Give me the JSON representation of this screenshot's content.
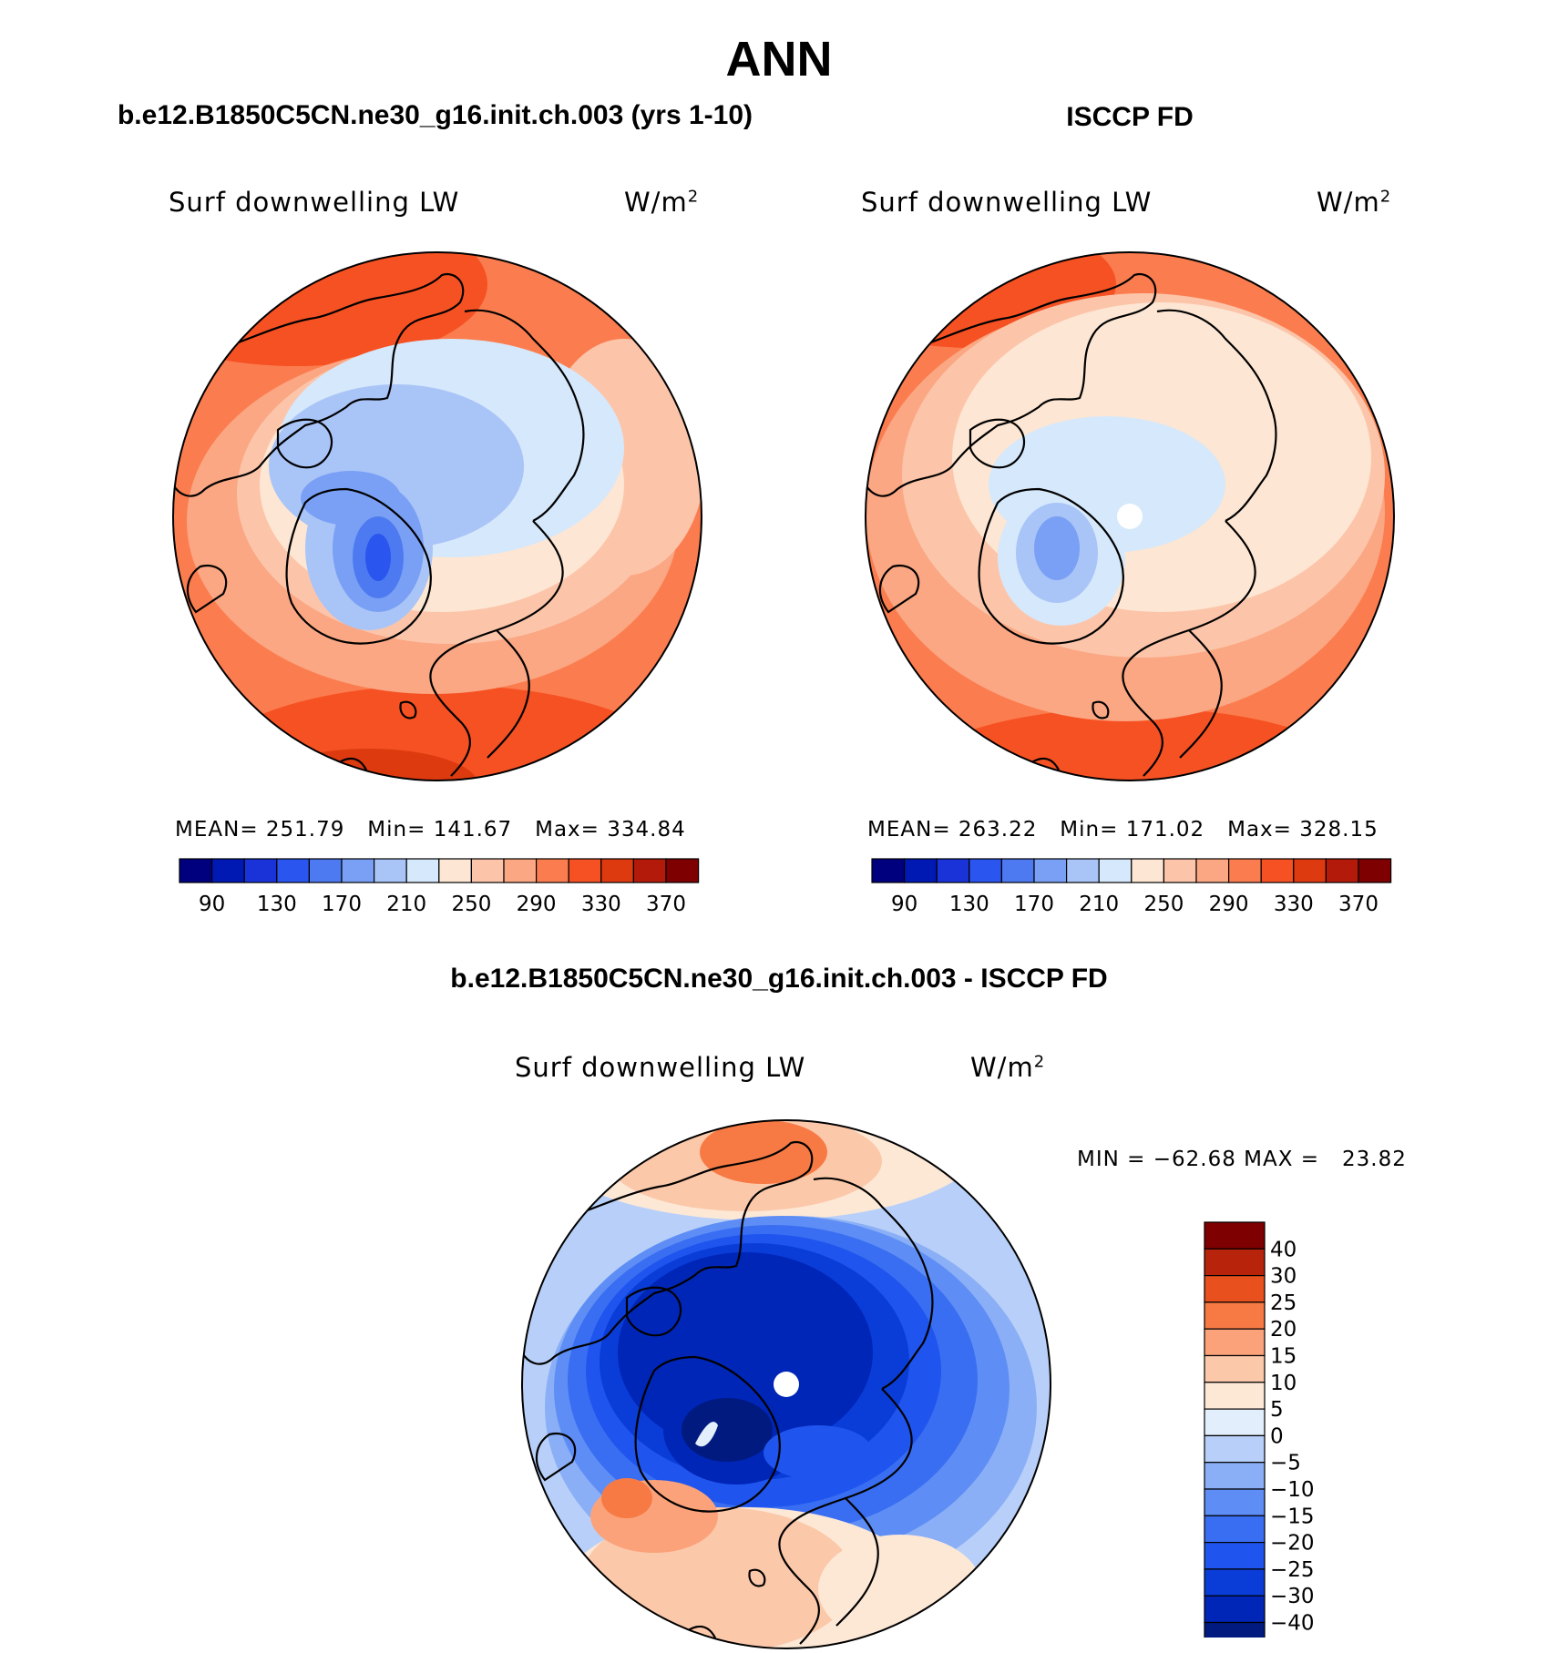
{
  "figure_title": "ANN",
  "colors": {
    "abs_scale": [
      "#00007f",
      "#0019b3",
      "#1a33d9",
      "#2a55ee",
      "#4d7af0",
      "#7aa0f5",
      "#a9c4f7",
      "#d6e8fb",
      "#fde6d3",
      "#fcc5aa",
      "#fba783",
      "#fb7d4f",
      "#f65123",
      "#dd3a10",
      "#b31a0a",
      "#7f0000"
    ],
    "diff_scale": [
      "#001a80",
      "#0026b8",
      "#0a3dd8",
      "#1f55ee",
      "#3a6ef2",
      "#5e8ef5",
      "#8aafF6",
      "#b8d0f9",
      "#e2eefc",
      "#fde8d6",
      "#fcc8aa",
      "#fba27a",
      "#f77a44",
      "#e8501e",
      "#b8240b",
      "#7f0000"
    ]
  },
  "panels": [
    {
      "heading": "b.e12.B1850C5CN.ne30_g16.init.ch.003 (yrs 1-10)",
      "variable": "Surf downwelling LW",
      "units": "W/m",
      "units_sup": "2",
      "stats": "MEAN= 251.79   Min= 141.67   Max= 334.84",
      "colorbar_labels": [
        "90",
        "130",
        "170",
        "210",
        "250",
        "290",
        "330",
        "370"
      ]
    },
    {
      "heading": "ISCCP FD",
      "variable": "Surf downwelling LW",
      "units": "W/m",
      "units_sup": "2",
      "stats": "MEAN= 263.22   Min= 171.02   Max= 328.15",
      "colorbar_labels": [
        "90",
        "130",
        "170",
        "210",
        "250",
        "290",
        "330",
        "370"
      ]
    },
    {
      "heading": "b.e12.B1850C5CN.ne30_g16.init.ch.003 - ISCCP FD",
      "variable": "Surf downwelling LW",
      "units": "W/m",
      "units_sup": "2",
      "stats": "MIN = −62.68 MAX =   23.82",
      "colorbar_labels": [
        "40",
        "30",
        "25",
        "20",
        "15",
        "10",
        "5",
        "0",
        "−5",
        "−10",
        "−15",
        "−20",
        "−25",
        "−30",
        "−40"
      ]
    }
  ]
}
